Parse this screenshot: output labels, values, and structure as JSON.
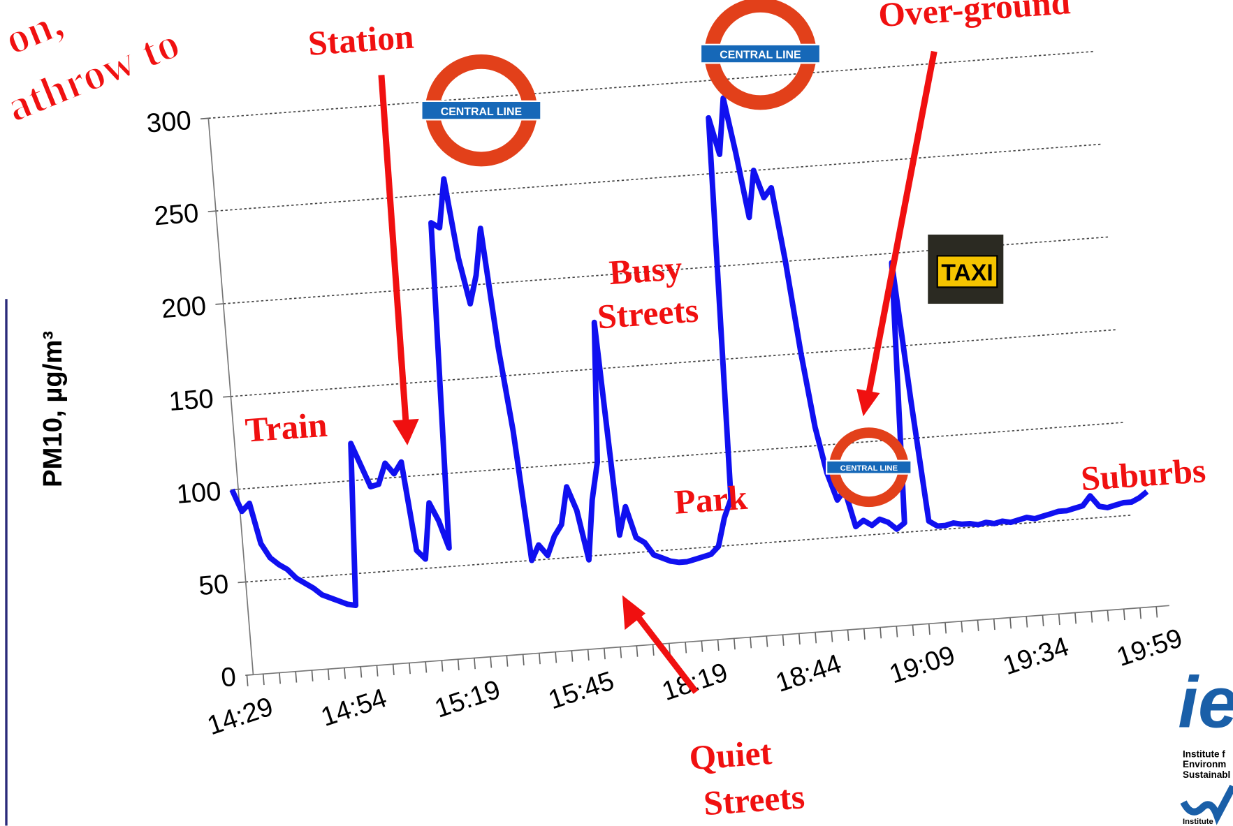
{
  "chart_data": {
    "type": "line",
    "title_fragments": [
      "on,",
      "athrow to"
    ],
    "y_label": "PM10, µg/m³",
    "categories": [
      "14:29",
      null,
      null,
      null,
      null,
      null,
      null,
      null,
      null,
      null,
      null,
      null,
      null,
      null,
      "14:54",
      null,
      null,
      null,
      null,
      null,
      null,
      null,
      null,
      null,
      null,
      null,
      null,
      null,
      "15:19",
      null,
      null,
      null,
      null,
      null,
      null,
      null,
      null,
      null,
      null,
      null,
      null,
      null,
      "15:45",
      null,
      null,
      null,
      null,
      null,
      null,
      null,
      null,
      null,
      null,
      null,
      null,
      null,
      "18:19",
      null,
      null,
      null,
      null,
      null,
      null,
      null,
      null,
      null,
      null,
      null,
      null,
      null,
      "18:44",
      null,
      null,
      null,
      null,
      null,
      null,
      null,
      null,
      null,
      null,
      null,
      null,
      null,
      "19:09",
      null,
      null,
      null,
      null,
      null,
      null,
      null,
      null,
      null,
      null,
      null,
      null,
      null,
      "19:34",
      null,
      null,
      null,
      null,
      null,
      null,
      null,
      null,
      null,
      null,
      null,
      null,
      null,
      "19:59"
    ],
    "values": [
      100,
      88,
      92,
      70,
      62,
      58,
      55,
      50,
      47,
      44,
      40,
      38,
      36,
      34,
      33,
      120,
      108,
      96,
      97,
      108,
      102,
      108,
      60,
      55,
      85,
      75,
      60,
      235,
      232,
      258,
      215,
      190,
      205,
      230,
      165,
      120,
      50,
      58,
      52,
      62,
      68,
      88,
      75,
      48,
      80,
      100,
      175,
      60,
      75,
      58,
      55,
      48,
      46,
      44,
      43,
      43,
      44,
      45,
      46,
      50,
      65,
      75,
      280,
      260,
      290,
      260,
      225,
      250,
      235,
      240,
      200,
      150,
      110,
      85,
      70,
      75,
      55,
      58,
      55,
      58,
      56,
      52,
      55,
      195,
      120,
      55,
      52,
      52,
      53,
      52,
      52,
      51,
      52,
      51,
      52,
      51,
      52,
      53,
      52,
      53,
      54,
      55,
      55,
      56,
      57,
      62,
      56,
      55,
      56,
      57,
      57,
      59,
      62
    ],
    "color": "#1010f0",
    "ylim": [
      0,
      300
    ],
    "yticks": [
      0,
      50,
      100,
      150,
      200,
      250,
      300
    ],
    "grid": true,
    "annotations": [
      "Station",
      "Train",
      "Busy",
      "Streets",
      "Park",
      "Quiet",
      "Streets",
      "Over-ground",
      "Suburbs"
    ],
    "roundel_label": "CENTRAL LINE",
    "taxi_label": "TAXI",
    "logo": [
      "ie",
      "Institute f",
      "Environm",
      "Sustainabl",
      "Institute"
    ]
  }
}
